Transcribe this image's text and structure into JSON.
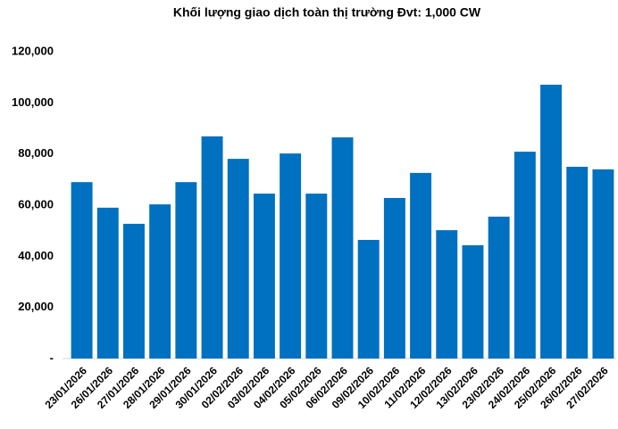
{
  "chart_data": {
    "type": "bar",
    "title": "Khối lượng giao dịch toàn thị trường Đvt: 1,000 CW",
    "categories": [
      "23/01/2026",
      "26/01/2026",
      "27/01/2026",
      "28/01/2026",
      "29/01/2026",
      "30/01/2026",
      "02/02/2026",
      "03/02/2026",
      "04/02/2026",
      "05/02/2026",
      "06/02/2026",
      "09/02/2026",
      "10/02/2026",
      "11/02/2026",
      "12/02/2026",
      "13/02/2026",
      "23/02/2026",
      "24/02/2026",
      "25/02/2026",
      "26/02/2026",
      "27/02/2026"
    ],
    "values": [
      69000,
      59000,
      52700,
      60300,
      69000,
      86900,
      78100,
      64500,
      80200,
      64500,
      86500,
      46400,
      62800,
      72600,
      50200,
      44300,
      55500,
      80900,
      107100,
      75000,
      74000
    ],
    "color": "#0070c0",
    "ylim": [
      0,
      120000
    ],
    "yticks": [
      {
        "value": 0,
        "label": "-"
      },
      {
        "value": 20000,
        "label": "20,000"
      },
      {
        "value": 40000,
        "label": "40,000"
      },
      {
        "value": 60000,
        "label": "60,000"
      },
      {
        "value": 80000,
        "label": "80,000"
      },
      {
        "value": 100000,
        "label": "100,000"
      },
      {
        "value": 120000,
        "label": "120,000"
      }
    ],
    "grid": false
  }
}
